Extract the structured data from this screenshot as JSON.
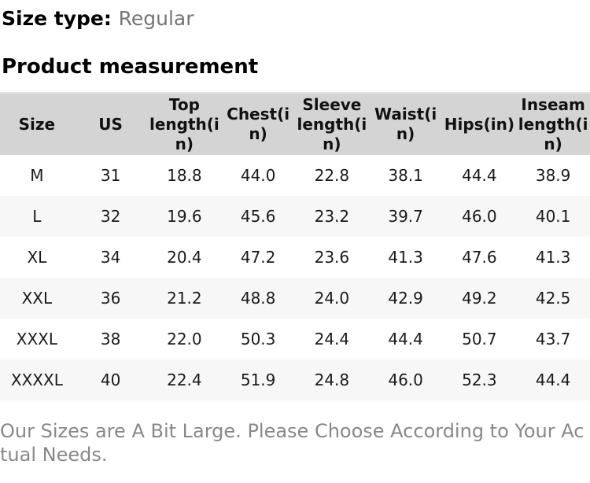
{
  "size_type": {
    "label": "Size type:",
    "value": "Regular"
  },
  "section_title": "Product measurement",
  "table": {
    "headers": [
      "Size",
      "US",
      "Top length(in)",
      "Chest(in)",
      "Sleeve length(in)",
      "Waist(in)",
      "Hips(in)",
      "Inseam length(in)"
    ],
    "headers_display": [
      "Size",
      "US",
      "Top\nlength(i\nn)",
      "Chest(i\nn)",
      "Sleeve\nlength(i\nn)",
      "Waist(i\nn)",
      "Hips(in)",
      "Inseam\nlength(i\nn)"
    ],
    "rows": [
      [
        "M",
        "31",
        "18.8",
        "44.0",
        "22.8",
        "38.1",
        "44.4",
        "38.9"
      ],
      [
        "L",
        "32",
        "19.6",
        "45.6",
        "23.2",
        "39.7",
        "46.0",
        "40.1"
      ],
      [
        "XL",
        "34",
        "20.4",
        "47.2",
        "23.6",
        "41.3",
        "47.6",
        "41.3"
      ],
      [
        "XXL",
        "36",
        "21.2",
        "48.8",
        "24.0",
        "42.9",
        "49.2",
        "42.5"
      ],
      [
        "XXXL",
        "38",
        "22.0",
        "50.3",
        "24.4",
        "44.4",
        "50.7",
        "43.7"
      ],
      [
        "XXXXL",
        "40",
        "22.4",
        "51.9",
        "24.8",
        "46.0",
        "52.3",
        "44.4"
      ]
    ]
  },
  "footer_note": "Our Sizes are A Bit Large. Please Choose According to Your Ac\ntual Needs.",
  "colors": {
    "header_bg": "#d4d4d4",
    "stripe_bg": "#f7f7f7",
    "muted_value_text": "#757575",
    "note_text": "#888888"
  }
}
